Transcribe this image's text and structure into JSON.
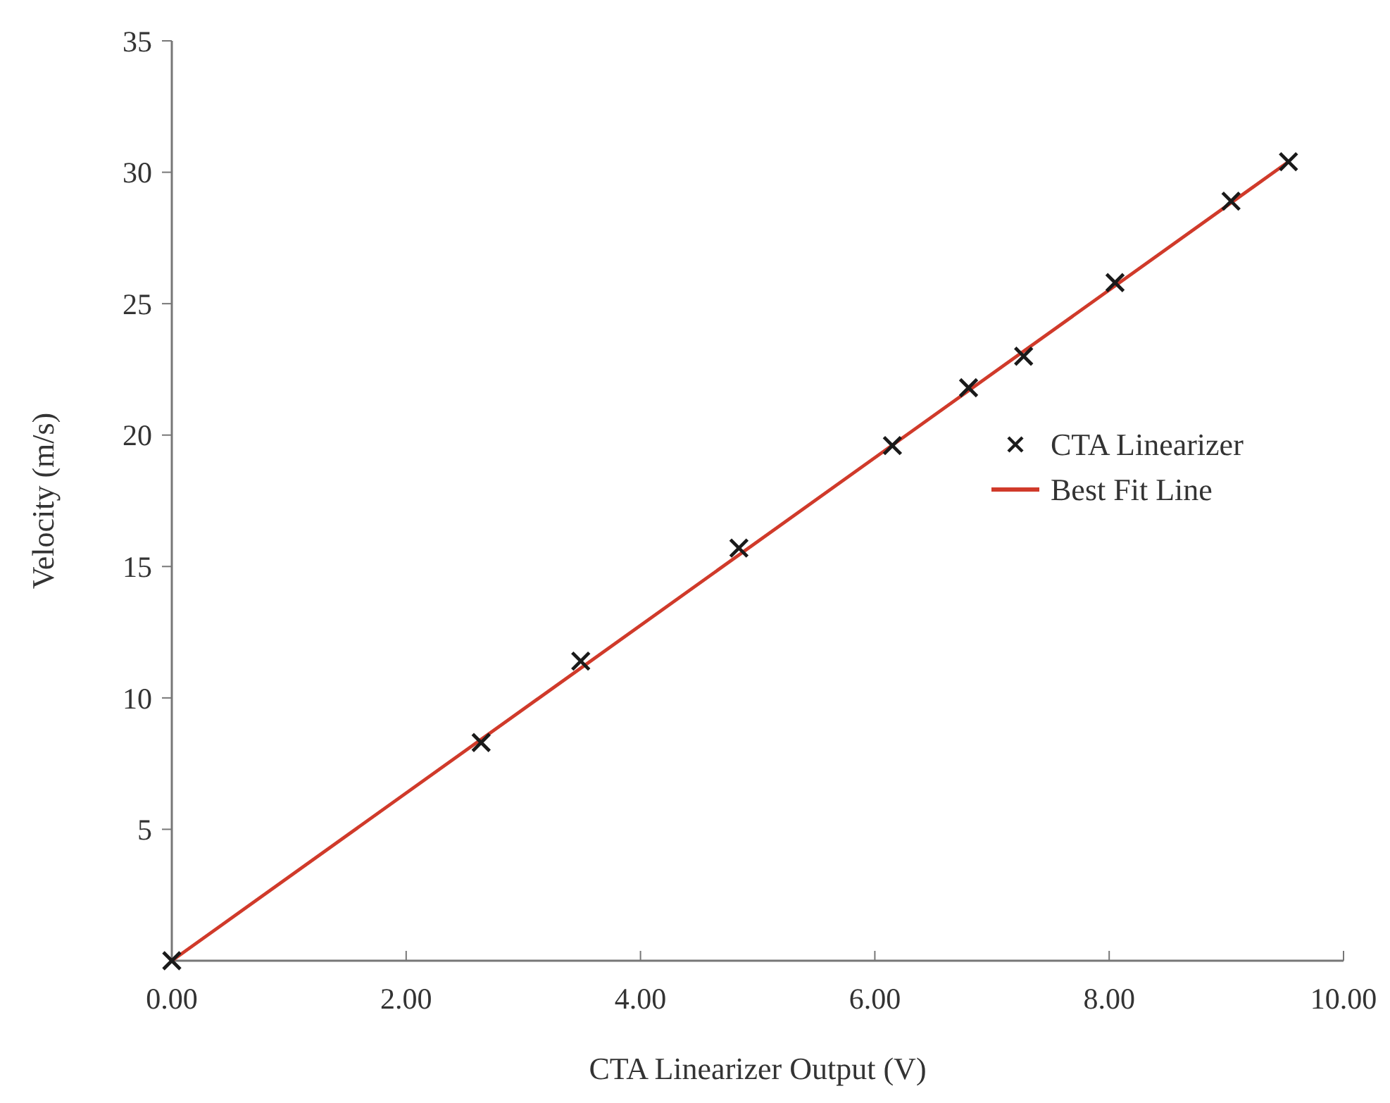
{
  "chart_data": {
    "type": "scatter",
    "xlabel": "CTA Linearizer Output (V)",
    "ylabel": "Velocity (m/s)",
    "xlim": [
      0,
      10
    ],
    "ylim": [
      0,
      35
    ],
    "xticks": [
      {
        "value": 0,
        "label": "0.00"
      },
      {
        "value": 2,
        "label": "2.00"
      },
      {
        "value": 4,
        "label": "4.00"
      },
      {
        "value": 6,
        "label": "6.00"
      },
      {
        "value": 8,
        "label": "8.00"
      },
      {
        "value": 10,
        "label": "10.00"
      }
    ],
    "yticks": [
      5,
      10,
      15,
      20,
      25,
      30,
      35
    ],
    "grid": false,
    "legend": "right",
    "series": [
      {
        "name": "CTA Linearizer",
        "marker": "cross",
        "color": "#1a1a1a",
        "x": [
          0,
          2.64,
          3.49,
          4.84,
          6.15,
          6.8,
          7.27,
          8.05,
          9.04,
          9.53
        ],
        "values": [
          0,
          8.3,
          11.4,
          15.7,
          19.6,
          21.8,
          23.0,
          25.8,
          28.9,
          30.4
        ]
      },
      {
        "name": "Best Fit Line",
        "type": "line",
        "color": "#d03a2a",
        "line_style": "solid",
        "x": [
          0,
          9.53
        ],
        "values": [
          0,
          30.4
        ]
      }
    ]
  }
}
